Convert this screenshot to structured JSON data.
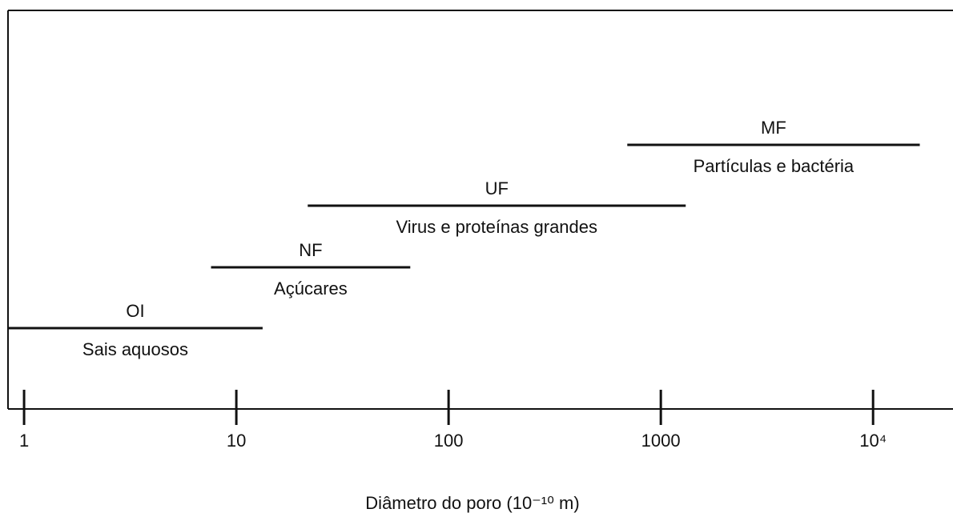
{
  "chart_data": {
    "type": "range",
    "xlabel": "Diâmetro do poro (10⁻¹⁰ m)",
    "log_x": true,
    "xlim": [
      0.84,
      23800
    ],
    "xticks": [
      1,
      10,
      100,
      1000,
      {
        "value": 10000,
        "label": "10⁴"
      }
    ],
    "color": "#111111",
    "series": [
      {
        "name": "OI",
        "description": "Sais aquosos",
        "values": [
          0.84,
          13.3
        ]
      },
      {
        "name": "NF",
        "description": "Açúcares",
        "values": [
          7.6,
          66
        ]
      },
      {
        "name": "UF",
        "description": "Virus e proteínas grandes",
        "values": [
          21.7,
          1310
        ]
      },
      {
        "name": "MF",
        "description": "Partículas e bactéria",
        "values": [
          695,
          16600
        ]
      }
    ]
  }
}
